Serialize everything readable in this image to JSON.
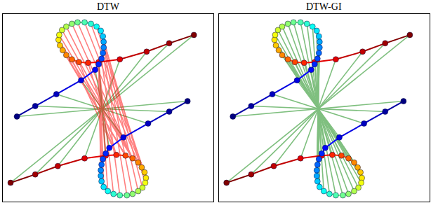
{
  "chart_data": [
    {
      "type": "scatter",
      "title": "DTW",
      "xlim": [
        4,
        303
      ],
      "ylim": [
        287,
        18
      ],
      "tick_labels": false,
      "grid": false,
      "color": "jet",
      "marker": "circle",
      "series": [
        {
          "x": [
            15,
            50,
            82,
            120,
            150,
            165,
            178,
            188,
            196,
            201,
            205,
            207,
            206,
            202,
            196,
            188,
            180,
            170,
            161,
            153,
            147,
            144,
            143,
            143,
            144,
            146,
            150,
            155,
            175,
            210,
            240,
            266
          ],
          "y": [
            260,
            248,
            236,
            225,
            221,
            220,
            221,
            225,
            231,
            238,
            245,
            253,
            260,
            267,
            272,
            276,
            278,
            278,
            276,
            272,
            266,
            258,
            250,
            242,
            234,
            226,
            218,
            210,
            195,
            175,
            158,
            143
          ]
        },
        {
          "x": [
            275,
            240,
            208,
            170,
            140,
            125,
            112,
            102,
            94,
            89,
            85,
            83,
            84,
            88,
            94,
            102,
            110,
            120,
            129,
            137,
            143,
            146,
            147,
            147,
            146,
            144,
            140,
            135,
            115,
            80,
            50,
            24
          ],
          "y": [
            48,
            60,
            72,
            83,
            87,
            88,
            87,
            83,
            77,
            70,
            63,
            55,
            48,
            41,
            36,
            32,
            30,
            30,
            32,
            36,
            42,
            50,
            58,
            66,
            74,
            82,
            90,
            98,
            113,
            133,
            150,
            165
          ]
        }
      ],
      "matches": [
        {
          "color": "#008000",
          "pairs": [
            [
              0,
              0
            ],
            [
              1,
              1
            ],
            [
              2,
              2
            ],
            [
              3,
              3
            ],
            [
              4,
              4
            ],
            [
              27,
              27
            ],
            [
              28,
              28
            ],
            [
              29,
              29
            ],
            [
              30,
              30
            ],
            [
              31,
              31
            ]
          ]
        },
        {
          "color": "#ff0000",
          "pairs": [
            [
              5,
              5
            ],
            [
              5,
              6
            ],
            [
              5,
              7
            ],
            [
              6,
              8
            ],
            [
              6,
              9
            ],
            [
              6,
              10
            ],
            [
              7,
              11
            ],
            [
              7,
              12
            ],
            [
              7,
              13
            ],
            [
              7,
              14
            ],
            [
              7,
              15
            ],
            [
              8,
              16
            ],
            [
              9,
              17
            ],
            [
              10,
              18
            ],
            [
              11,
              19
            ],
            [
              12,
              20
            ],
            [
              13,
              21
            ],
            [
              14,
              22
            ],
            [
              15,
              23
            ],
            [
              16,
              24
            ],
            [
              17,
              25
            ],
            [
              18,
              26
            ],
            [
              19,
              26
            ],
            [
              20,
              26
            ],
            [
              21,
              26
            ],
            [
              22,
              26
            ],
            [
              23,
              26
            ],
            [
              24,
              26
            ],
            [
              25,
              26
            ],
            [
              26,
              26
            ]
          ]
        }
      ]
    },
    {
      "type": "scatter",
      "title": "DTW-GI",
      "xlim": [
        4,
        303
      ],
      "ylim": [
        287,
        18
      ],
      "tick_labels": false,
      "grid": false,
      "color": "jet",
      "marker": "circle",
      "series": [
        {
          "x": [
            15,
            50,
            82,
            120,
            150,
            165,
            178,
            188,
            196,
            201,
            205,
            207,
            206,
            202,
            196,
            188,
            180,
            170,
            161,
            153,
            147,
            144,
            143,
            143,
            144,
            146,
            150,
            155,
            175,
            210,
            240,
            266
          ],
          "y": [
            260,
            248,
            236,
            225,
            221,
            220,
            221,
            225,
            231,
            238,
            245,
            253,
            260,
            267,
            272,
            276,
            278,
            278,
            276,
            272,
            266,
            258,
            250,
            242,
            234,
            226,
            218,
            210,
            195,
            175,
            158,
            143
          ]
        },
        {
          "x": [
            275,
            240,
            208,
            170,
            140,
            125,
            112,
            102,
            94,
            89,
            85,
            83,
            84,
            88,
            94,
            102,
            110,
            120,
            129,
            137,
            143,
            146,
            147,
            147,
            146,
            144,
            140,
            135,
            115,
            80,
            50,
            24
          ],
          "y": [
            48,
            60,
            72,
            83,
            87,
            88,
            87,
            83,
            77,
            70,
            63,
            55,
            48,
            41,
            36,
            32,
            30,
            30,
            32,
            36,
            42,
            50,
            58,
            66,
            74,
            82,
            90,
            98,
            113,
            133,
            150,
            165
          ]
        }
      ],
      "matches": [
        {
          "color": "#008000",
          "pairs": [
            [
              0,
              0
            ],
            [
              1,
              1
            ],
            [
              2,
              2
            ],
            [
              3,
              3
            ],
            [
              4,
              4
            ],
            [
              5,
              5
            ],
            [
              6,
              6
            ],
            [
              7,
              7
            ],
            [
              8,
              8
            ],
            [
              9,
              9
            ],
            [
              10,
              10
            ],
            [
              11,
              11
            ],
            [
              12,
              12
            ],
            [
              13,
              13
            ],
            [
              14,
              14
            ],
            [
              15,
              15
            ],
            [
              16,
              16
            ],
            [
              17,
              17
            ],
            [
              18,
              18
            ],
            [
              19,
              19
            ],
            [
              20,
              20
            ],
            [
              21,
              21
            ],
            [
              22,
              22
            ],
            [
              23,
              23
            ],
            [
              24,
              24
            ],
            [
              25,
              25
            ],
            [
              26,
              26
            ],
            [
              27,
              27
            ],
            [
              28,
              28
            ],
            [
              29,
              29
            ],
            [
              30,
              30
            ],
            [
              31,
              31
            ]
          ]
        }
      ]
    }
  ]
}
